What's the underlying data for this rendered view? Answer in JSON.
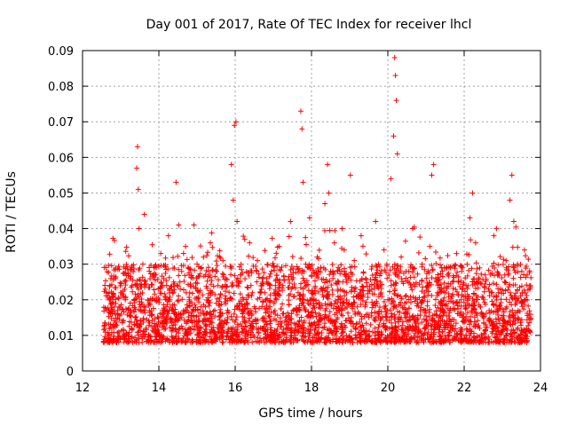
{
  "chart_data": {
    "type": "scatter",
    "title": "Day 001 of 2017, Rate Of TEC Index for receiver lhcl",
    "xlabel": "GPS time / hours",
    "ylabel": "ROTI / TECUs",
    "xlim": [
      12,
      24
    ],
    "ylim": [
      0,
      0.09
    ],
    "xticks": [
      "12",
      "14",
      "16",
      "18",
      "20",
      "22",
      "24"
    ],
    "yticks": [
      "0",
      "0.01",
      "0.02",
      "0.03",
      "0.04",
      "0.05",
      "0.06",
      "0.07",
      "0.08",
      "0.09"
    ],
    "grid": true,
    "marker": "+",
    "series": [
      {
        "name": "ROTI",
        "color": "#ff0000",
        "x": [
          12.58,
          12.62,
          12.7,
          12.78,
          12.86,
          12.95,
          13.05,
          13.12,
          13.22,
          13.3,
          13.38,
          13.42,
          13.44,
          13.46,
          13.48,
          13.52,
          13.58,
          13.62,
          13.66,
          13.75,
          13.85,
          13.95,
          14.05,
          14.15,
          14.25,
          14.35,
          14.45,
          14.52,
          14.55,
          14.6,
          14.7,
          14.8,
          14.92,
          15.0,
          15.12,
          15.22,
          15.35,
          15.45,
          15.55,
          15.68,
          15.8,
          15.9,
          15.95,
          15.98,
          16.02,
          16.05,
          16.1,
          16.15,
          16.25,
          16.35,
          16.45,
          16.58,
          16.7,
          16.8,
          16.95,
          17.05,
          17.15,
          17.25,
          17.35,
          17.45,
          17.55,
          17.68,
          17.72,
          17.75,
          17.78,
          17.85,
          17.95,
          18.05,
          18.15,
          18.25,
          18.35,
          18.42,
          18.45,
          18.5,
          18.6,
          18.7,
          18.8,
          18.92,
          19.02,
          19.12,
          19.2,
          19.3,
          19.42,
          19.55,
          19.68,
          19.8,
          19.9,
          20.0,
          20.08,
          20.15,
          20.18,
          20.2,
          20.22,
          20.25,
          20.35,
          20.45,
          20.55,
          20.65,
          20.78,
          20.9,
          21.0,
          21.1,
          21.15,
          21.2,
          21.3,
          21.42,
          21.55,
          21.68,
          21.8,
          21.92,
          22.05,
          22.15,
          22.22,
          22.3,
          22.42,
          22.55,
          22.65,
          22.78,
          22.9,
          23.0,
          23.1,
          23.2,
          23.25,
          23.3,
          23.4,
          23.5,
          23.58,
          23.65,
          23.72
        ],
        "y": [
          0.012,
          0.022,
          0.01,
          0.016,
          0.026,
          0.011,
          0.014,
          0.02,
          0.009,
          0.024,
          0.015,
          0.057,
          0.063,
          0.051,
          0.04,
          0.018,
          0.03,
          0.044,
          0.012,
          0.019,
          0.027,
          0.013,
          0.033,
          0.017,
          0.038,
          0.012,
          0.053,
          0.041,
          0.025,
          0.015,
          0.035,
          0.02,
          0.041,
          0.013,
          0.029,
          0.018,
          0.036,
          0.011,
          0.024,
          0.031,
          0.015,
          0.058,
          0.048,
          0.069,
          0.07,
          0.042,
          0.019,
          0.027,
          0.037,
          0.014,
          0.022,
          0.031,
          0.012,
          0.02,
          0.028,
          0.016,
          0.035,
          0.024,
          0.013,
          0.042,
          0.021,
          0.017,
          0.073,
          0.068,
          0.053,
          0.03,
          0.043,
          0.019,
          0.032,
          0.015,
          0.047,
          0.058,
          0.05,
          0.028,
          0.036,
          0.017,
          0.04,
          0.022,
          0.055,
          0.031,
          0.018,
          0.038,
          0.026,
          0.013,
          0.042,
          0.025,
          0.034,
          0.02,
          0.054,
          0.066,
          0.088,
          0.083,
          0.076,
          0.061,
          0.032,
          0.015,
          0.028,
          0.04,
          0.019,
          0.03,
          0.014,
          0.035,
          0.055,
          0.058,
          0.022,
          0.017,
          0.029,
          0.012,
          0.033,
          0.02,
          0.024,
          0.043,
          0.05,
          0.036,
          0.018,
          0.027,
          0.014,
          0.038,
          0.022,
          0.015,
          0.031,
          0.048,
          0.055,
          0.042,
          0.03,
          0.019,
          0.034,
          0.027,
          0.023
        ]
      }
    ],
    "noise_band": {
      "x_range": [
        12.55,
        23.75
      ],
      "y_typical": [
        0.008,
        0.03
      ]
    }
  }
}
